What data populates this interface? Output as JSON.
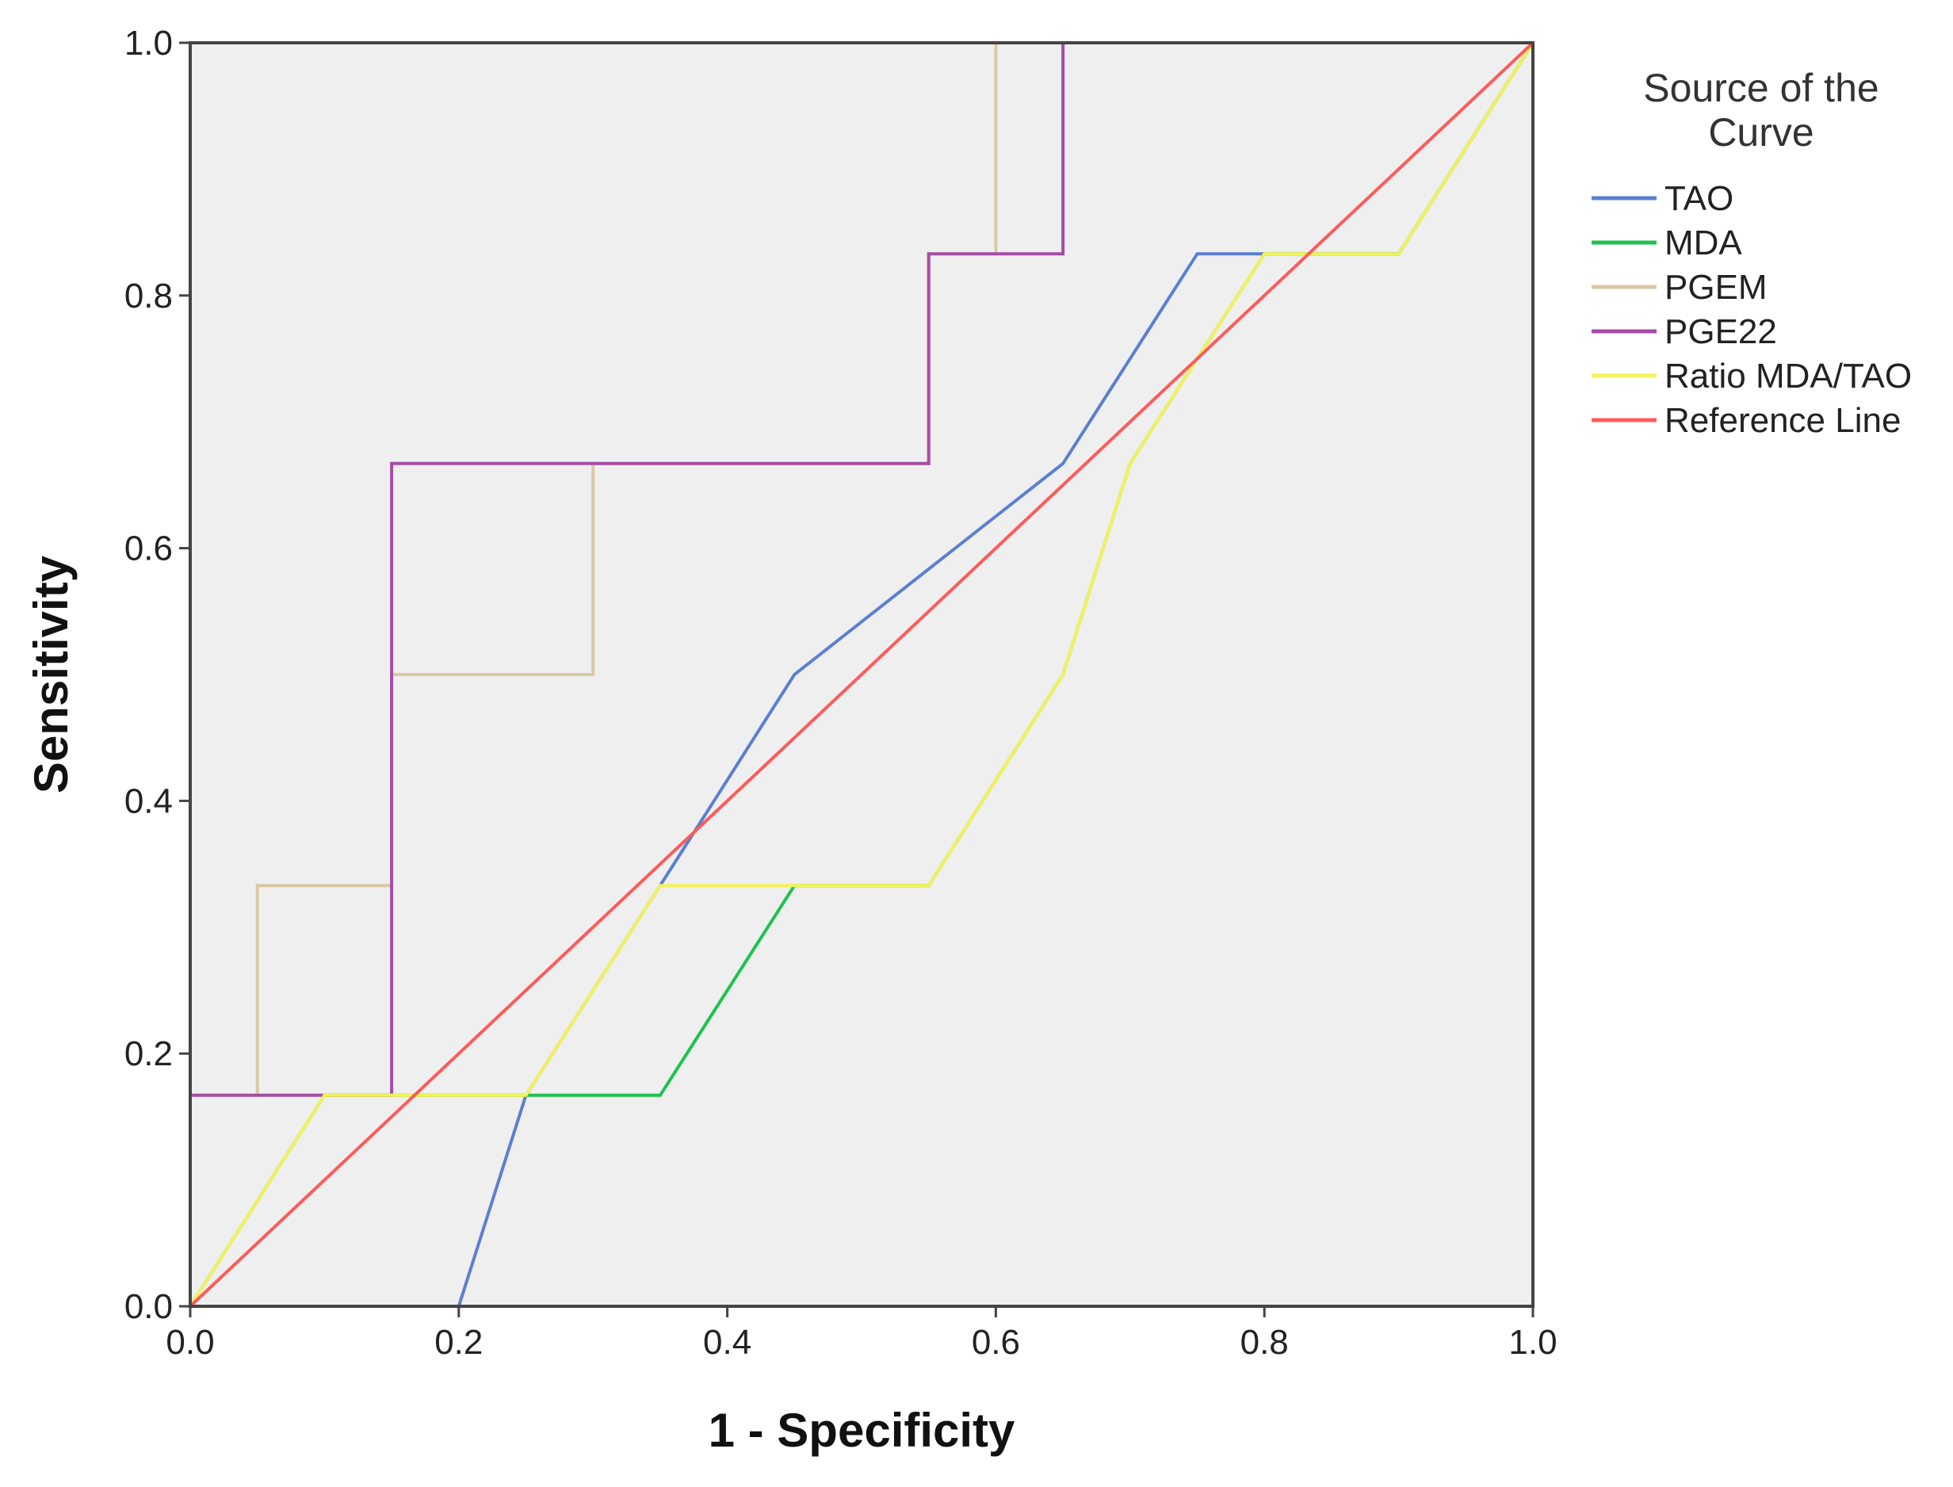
{
  "chart_data": {
    "type": "line",
    "title": "",
    "xlabel": "1 - Specificity",
    "ylabel": "Sensitivity",
    "xlim": [
      0,
      1
    ],
    "ylim": [
      0,
      1
    ],
    "xticks": [
      "0.0",
      "0.2",
      "0.4",
      "0.6",
      "0.8",
      "1.0"
    ],
    "yticks": [
      "0.0",
      "0.2",
      "0.4",
      "0.6",
      "0.8",
      "1.0"
    ],
    "grid": false,
    "plot_background": "#efefef",
    "legend": {
      "title_line1": "Source of the",
      "title_line2": "Curve",
      "placement": "right"
    },
    "series": [
      {
        "name": "TAO",
        "color": "#5b7fd1",
        "x": [
          0,
          0.2,
          0.25,
          0.35,
          0.45,
          0.65,
          0.75,
          0.8,
          0.9,
          1.0
        ],
        "y": [
          0,
          0,
          0.167,
          0.333,
          0.5,
          0.667,
          0.833,
          0.833,
          0.833,
          1.0
        ]
      },
      {
        "name": "MDA",
        "color": "#1ec24d",
        "x": [
          0,
          0.1,
          0.35,
          0.45,
          0.55,
          0.65,
          0.7,
          0.8,
          0.9,
          1.0
        ],
        "y": [
          0,
          0.167,
          0.167,
          0.333,
          0.333,
          0.5,
          0.667,
          0.833,
          0.833,
          1.0
        ]
      },
      {
        "name": "PGEM",
        "color": "#d9c9a3",
        "x": [
          0,
          0,
          0.05,
          0.05,
          0.15,
          0.15,
          0.3,
          0.3,
          0.55,
          0.55,
          0.6,
          0.6,
          1.0
        ],
        "y": [
          0,
          0.167,
          0.167,
          0.333,
          0.333,
          0.5,
          0.5,
          0.667,
          0.667,
          0.833,
          0.833,
          1.0,
          1.0
        ]
      },
      {
        "name": "PGE22",
        "color": "#a54da6",
        "x": [
          0,
          0,
          0.15,
          0.15,
          0.55,
          0.55,
          0.65,
          0.65,
          1.0
        ],
        "y": [
          0,
          0.167,
          0.167,
          0.667,
          0.667,
          0.833,
          0.833,
          1.0,
          1.0
        ]
      },
      {
        "name": "Ratio MDA/TAO",
        "color": "#f2f25a",
        "x": [
          0,
          0.1,
          0.25,
          0.35,
          0.55,
          0.65,
          0.7,
          0.8,
          0.9,
          1.0
        ],
        "y": [
          0,
          0.167,
          0.167,
          0.333,
          0.333,
          0.5,
          0.667,
          0.833,
          0.833,
          1.0
        ]
      },
      {
        "name": "Reference Line",
        "color": "#ff5a5a",
        "x": [
          0,
          1
        ],
        "y": [
          0,
          1
        ]
      }
    ]
  }
}
